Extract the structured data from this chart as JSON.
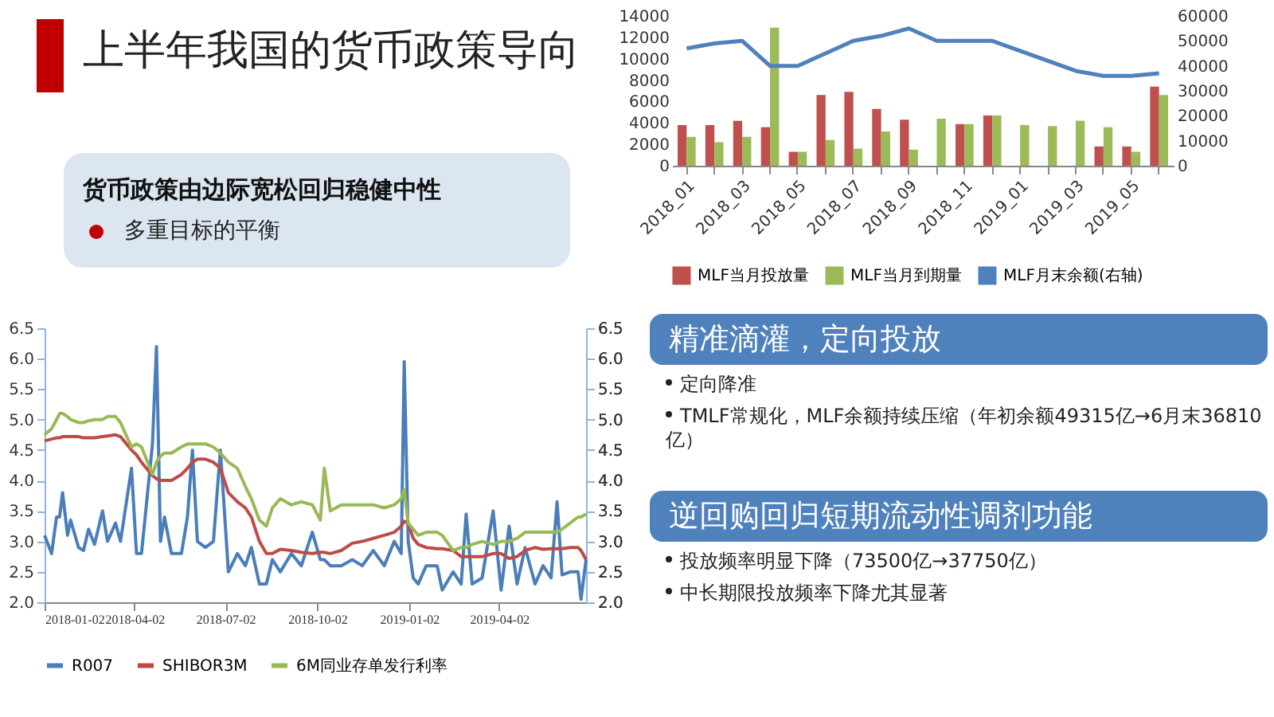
{
  "chart_data": [
    {
      "type": "other",
      "title": "上半年我国的货币政策导向",
      "subtitle": "货币政策由边际宽松回归稳健中性",
      "annotations": [
        "多重目标的平衡"
      ]
    },
    {
      "type": "bar",
      "categories": [
        "2018_01",
        null,
        "2018_03",
        null,
        "2018_05",
        null,
        "2018_07",
        null,
        "2018_09",
        null,
        "2018_11",
        null,
        "2019_01",
        null,
        "2019_03",
        null,
        "2019_05",
        null
      ],
      "series": [
        {
          "name": "MLF当月投放量",
          "color": "#c0504d",
          "values": [
            3800,
            3800,
            4200,
            3600,
            1300,
            6600,
            6900,
            5300,
            4300,
            null,
            3900,
            4700,
            null,
            null,
            null,
            1800,
            1800,
            7400
          ]
        },
        {
          "name": "MLF当月到期量",
          "color": "#9bbb59",
          "values": [
            2700,
            2200,
            2700,
            12900,
            1300,
            2400,
            1600,
            3200,
            1500,
            4400,
            3900,
            4700,
            3800,
            3700,
            4200,
            3600,
            1300,
            6600
          ]
        },
        {
          "name": "MLF月末余额(右轴)",
          "type": "line",
          "axis": "y2",
          "color": "#4f81bd",
          "values": [
            47000,
            49000,
            50000,
            40000,
            40000,
            45000,
            50000,
            52000,
            55000,
            50000,
            50000,
            50000,
            46000,
            42000,
            38000,
            36000,
            36000,
            37000
          ]
        }
      ],
      "ylim": [
        0,
        14000
      ],
      "yticks": [
        0,
        2000,
        4000,
        6000,
        8000,
        10000,
        12000,
        14000
      ],
      "y2lim": [
        0,
        60000
      ],
      "y2ticks": [
        0,
        10000,
        20000,
        30000,
        40000,
        50000,
        60000
      ],
      "legend": "bottom",
      "marker": "none"
    },
    {
      "type": "line",
      "x": [
        "2018-01-02",
        "2018-01-09",
        "2018-01-14",
        "2018-01-17",
        "2018-01-20",
        "2018-01-25",
        "2018-01-28",
        "2018-02-05",
        "2018-02-10",
        "2018-02-15",
        "2018-02-21",
        "2018-03-01",
        "2018-03-06",
        "2018-03-14",
        "2018-03-19",
        "2018-03-30",
        "2018-04-04",
        "2018-04-09",
        "2018-04-20",
        "2018-04-24",
        "2018-04-28",
        "2018-05-02",
        "2018-05-09",
        "2018-05-19",
        "2018-05-25",
        "2018-05-30",
        "2018-06-04",
        "2018-06-12",
        "2018-06-20",
        "2018-06-27",
        "2018-07-05",
        "2018-07-14",
        "2018-07-22",
        "2018-07-28",
        "2018-08-05",
        "2018-08-12",
        "2018-08-18",
        "2018-08-26",
        "2018-09-06",
        "2018-09-16",
        "2018-09-27",
        "2018-10-05",
        "2018-10-09",
        "2018-10-15",
        "2018-10-26",
        "2018-11-06",
        "2018-11-16",
        "2018-11-27",
        "2018-12-08",
        "2018-12-18",
        "2018-12-25",
        "2018-12-28",
        "2019-01-01",
        "2019-01-06",
        "2019-01-11",
        "2019-01-19",
        "2019-01-30",
        "2019-02-04",
        "2019-02-15",
        "2019-02-23",
        "2019-02-28",
        "2019-03-06",
        "2019-03-16",
        "2019-03-27",
        "2019-04-04",
        "2019-04-12",
        "2019-04-20",
        "2019-04-28",
        "2019-05-08",
        "2019-05-16",
        "2019-05-24",
        "2019-05-30",
        "2019-06-04",
        "2019-06-12",
        "2019-06-20",
        "2019-06-23",
        "2019-06-28"
      ],
      "series": [
        {
          "name": "R007",
          "color": "#4a7ebb",
          "values": [
            3.1,
            2.8,
            3.4,
            3.4,
            3.8,
            3.1,
            3.35,
            2.9,
            2.85,
            3.2,
            2.95,
            3.5,
            3.0,
            3.3,
            3.0,
            4.2,
            2.8,
            2.8,
            4.6,
            6.2,
            3.0,
            3.4,
            2.8,
            2.8,
            3.4,
            4.5,
            3.0,
            2.9,
            3.0,
            4.5,
            2.5,
            2.8,
            2.6,
            2.9,
            2.3,
            2.3,
            2.7,
            2.5,
            2.8,
            2.6,
            3.15,
            2.7,
            2.7,
            2.6,
            2.6,
            2.7,
            2.6,
            2.85,
            2.6,
            3.0,
            2.8,
            5.95,
            3.0,
            2.4,
            2.3,
            2.6,
            2.6,
            2.2,
            2.5,
            2.3,
            3.45,
            2.3,
            2.4,
            3.5,
            2.2,
            3.25,
            2.3,
            2.9,
            2.3,
            2.6,
            2.4,
            3.65,
            2.45,
            2.5,
            2.5,
            2.05,
            2.7
          ]
        },
        {
          "name": "SHIBOR3M",
          "color": "#be4b48",
          "values": [
            4.65,
            4.68,
            4.7,
            4.7,
            4.72,
            4.72,
            4.72,
            4.72,
            4.7,
            4.7,
            4.7,
            4.72,
            4.73,
            4.75,
            4.72,
            4.5,
            4.42,
            4.3,
            4.08,
            4.03,
            4.0,
            4.0,
            4.0,
            4.1,
            4.2,
            4.3,
            4.35,
            4.35,
            4.3,
            4.2,
            3.8,
            3.65,
            3.55,
            3.4,
            3.0,
            2.8,
            2.8,
            2.87,
            2.85,
            2.82,
            2.8,
            2.82,
            2.82,
            2.8,
            2.85,
            2.97,
            3.0,
            3.05,
            3.1,
            3.15,
            3.25,
            3.33,
            3.3,
            3.05,
            2.95,
            2.9,
            2.88,
            2.88,
            2.85,
            2.75,
            2.75,
            2.75,
            2.75,
            2.8,
            2.8,
            2.72,
            2.75,
            2.85,
            2.9,
            2.87,
            2.88,
            2.88,
            2.88,
            2.9,
            2.9,
            2.85,
            2.7
          ]
        },
        {
          "name": "6M同业存单发行利率",
          "color": "#98b954",
          "axis": "y2",
          "values": [
            4.75,
            4.85,
            5.0,
            5.1,
            5.1,
            5.05,
            5.0,
            4.95,
            4.95,
            4.98,
            5.0,
            5.0,
            5.05,
            5.05,
            4.95,
            4.55,
            4.6,
            4.55,
            4.1,
            4.3,
            4.4,
            4.45,
            4.45,
            4.55,
            4.6,
            4.6,
            4.6,
            4.6,
            4.55,
            4.45,
            4.3,
            4.2,
            3.9,
            3.7,
            3.35,
            3.25,
            3.55,
            3.7,
            3.6,
            3.65,
            3.6,
            3.35,
            4.2,
            3.5,
            3.6,
            3.6,
            3.6,
            3.6,
            3.55,
            3.6,
            3.7,
            3.85,
            3.3,
            3.2,
            3.1,
            3.15,
            3.15,
            3.1,
            2.85,
            2.9,
            2.9,
            2.95,
            3.0,
            2.95,
            3.0,
            3.0,
            3.05,
            3.15,
            3.15,
            3.15,
            3.15,
            3.15,
            3.2,
            3.3,
            3.4,
            3.4,
            3.45
          ]
        }
      ],
      "xlim": [
        "2018-01-02",
        "2019-06-28"
      ],
      "xticks": [
        "2018-01-02",
        "2018-04-02",
        "2018-07-02",
        "2018-10-02",
        "2019-01-02",
        "2019-04-02"
      ],
      "ylim": [
        2,
        6.5
      ],
      "yticks": [
        {
          "value": 2,
          "label": "2.0"
        },
        {
          "value": 2.5,
          "label": "2.5"
        },
        {
          "value": 3,
          "label": "3.0"
        },
        {
          "value": 3.5,
          "label": "3.5"
        },
        {
          "value": 4,
          "label": "4.0"
        },
        {
          "value": 4.5,
          "label": "4.5"
        },
        {
          "value": 5,
          "label": "5.0"
        },
        {
          "value": 5.5,
          "label": "5.5"
        },
        {
          "value": 6,
          "label": "6.0"
        },
        {
          "value": 6.5,
          "label": "6.5"
        }
      ],
      "y2lim": [
        2,
        6.5
      ],
      "y2ticks": [
        {
          "value": 2,
          "label": "2.0"
        },
        {
          "value": 2.5,
          "label": "2.5"
        },
        {
          "value": 3,
          "label": "3.0"
        },
        {
          "value": 3.5,
          "label": "3.5"
        },
        {
          "value": 4,
          "label": "4.0"
        },
        {
          "value": 4.5,
          "label": "4.5"
        },
        {
          "value": 5,
          "label": "5.0"
        },
        {
          "value": 5.5,
          "label": "5.5"
        },
        {
          "value": 6,
          "label": "6.0"
        },
        {
          "value": 6.5,
          "label": "6.5"
        }
      ],
      "legend": "bottom",
      "marker": "none",
      "line_style": "solid"
    },
    {
      "type": "other",
      "title": "精准滴灌，定向投放",
      "annotations": [
        "定向降准",
        "TMLF常规化，MLF余额持续压缩（年初余额49315亿→6月末36810亿）"
      ]
    },
    {
      "type": "other",
      "title": "逆回购回归短期流动性调剂功能",
      "annotations": [
        "投放频率明显下降（73500亿→37750亿）",
        "中长期限投放频率下降尤其显著"
      ]
    }
  ]
}
